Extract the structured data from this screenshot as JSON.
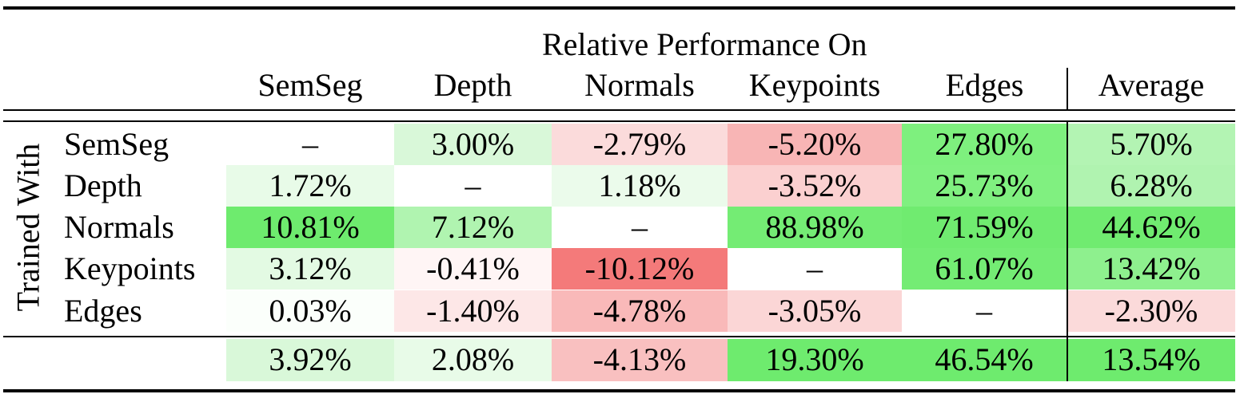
{
  "table": {
    "column_group": "Relative Performance On",
    "row_group": "Trained With",
    "columns": [
      "SemSeg",
      "Depth",
      "Normals",
      "Keypoints",
      "Edges",
      "Average"
    ],
    "rows": [
      {
        "label": "SemSeg",
        "cells": [
          "–",
          "3.00%",
          "-2.79%",
          "-5.20%",
          "27.80%",
          "5.70%"
        ],
        "colors": [
          null,
          "#d9f8d9",
          "#fbdbdb",
          "#f8b5b5",
          "#7ef07e",
          "#b3f4b3"
        ]
      },
      {
        "label": "Depth",
        "cells": [
          "1.72%",
          "–",
          "1.18%",
          "-3.52%",
          "25.73%",
          "6.28%"
        ],
        "colors": [
          "#e8fbe8",
          null,
          "#ebfbeb",
          "#fbd0d0",
          "#80f080",
          "#b0f3b0"
        ]
      },
      {
        "label": "Normals",
        "cells": [
          "10.81%",
          "7.12%",
          "–",
          "88.98%",
          "71.59%",
          "44.62%"
        ],
        "colors": [
          "#6eeb6e",
          "#b0f4b0",
          null,
          "#74ec74",
          "#70eb70",
          "#70eb70"
        ]
      },
      {
        "label": "Keypoints",
        "cells": [
          "3.12%",
          "-0.41%",
          "-10.12%",
          "–",
          "61.07%",
          "13.42%"
        ],
        "colors": [
          "#e3fae3",
          "#fff5f5",
          "#f47a7a",
          null,
          "#74ec74",
          "#8ef08e"
        ]
      },
      {
        "label": "Edges",
        "cells": [
          "0.03%",
          "-1.40%",
          "-4.78%",
          "-3.05%",
          "–",
          "-2.30%"
        ],
        "colors": [
          "#fbfffb",
          "#fde7e7",
          "#f9b9b9",
          "#fbd6d6",
          null,
          "#fbdada"
        ]
      }
    ],
    "summary": {
      "cells": [
        "3.92%",
        "2.08%",
        "-4.13%",
        "19.30%",
        "46.54%",
        "13.54%"
      ],
      "colors": [
        "#d9f8d9",
        "#e8fbe8",
        "#f9c0c0",
        "#6eeb6e",
        "#6eeb6e",
        "#6eeb6e"
      ]
    }
  }
}
